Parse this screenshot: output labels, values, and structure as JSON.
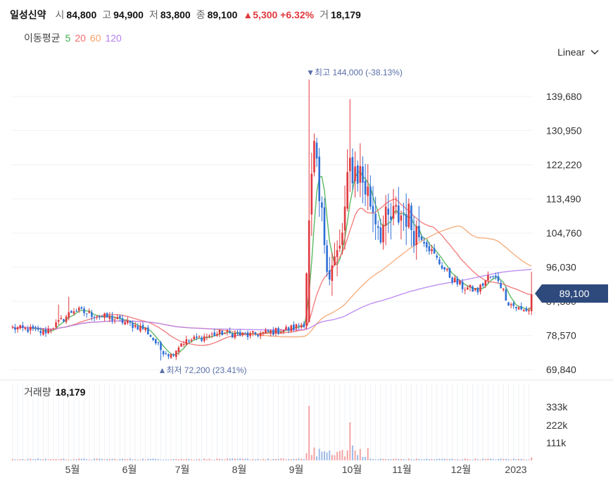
{
  "header": {
    "name": "일성신약",
    "open_label": "시",
    "open": "84,800",
    "high_label": "고",
    "high": "94,900",
    "low_label": "저",
    "low": "83,800",
    "close_label": "종",
    "close": "89,100",
    "change": "▲5,300 +6.32%",
    "volume_label": "거",
    "volume": "18,179"
  },
  "ma": {
    "label": "이동평균",
    "periods": [
      "5",
      "20",
      "60",
      "120"
    ],
    "colors": [
      "#3fae49",
      "#f06b6b",
      "#f3a26b",
      "#b57cf0"
    ]
  },
  "scale_mode": "Linear",
  "colors": {
    "up": "#e0383e",
    "down": "#2f6fd6",
    "current_tag": "#2e4a7d"
  },
  "current_price_tag": "89,100",
  "annotations": {
    "high": "▼최고 144,000 (-38.13%)",
    "low": "▲최저 72,200 (23.41%)"
  },
  "volume_panel": {
    "label": "거래량",
    "value": "18,179"
  },
  "chart_data": {
    "type": "candlestick",
    "price_axis": {
      "ticks": [
        139680,
        130950,
        122220,
        113490,
        104760,
        96030,
        87300,
        78570,
        69840
      ]
    },
    "volume_axis": {
      "ticks": [
        "333k",
        "222k",
        "111k"
      ]
    },
    "x_labels": [
      "5월",
      "6월",
      "7월",
      "8월",
      "9월",
      "10월",
      "11월",
      "12월",
      "2023"
    ],
    "anchors": [
      [
        0,
        80500
      ],
      [
        8,
        80000
      ],
      [
        12,
        79300
      ],
      [
        18,
        81800
      ],
      [
        24,
        85200
      ],
      [
        30,
        84100
      ],
      [
        40,
        82800
      ],
      [
        52,
        80200
      ],
      [
        58,
        75000
      ],
      [
        62,
        73500
      ],
      [
        66,
        76700
      ],
      [
        72,
        77800
      ],
      [
        82,
        79300
      ],
      [
        92,
        78600
      ],
      [
        104,
        79800
      ],
      [
        110,
        80600
      ],
      [
        114,
        81700
      ],
      [
        116,
        108000
      ],
      [
        118,
        125000
      ],
      [
        120,
        112000
      ],
      [
        124,
        95000
      ],
      [
        128,
        100000
      ],
      [
        130,
        110000
      ],
      [
        132,
        122000
      ],
      [
        136,
        120000
      ],
      [
        140,
        113000
      ],
      [
        144,
        106000
      ],
      [
        150,
        109000
      ],
      [
        154,
        110000
      ],
      [
        156,
        107000
      ],
      [
        160,
        104000
      ],
      [
        166,
        98000
      ],
      [
        172,
        93000
      ],
      [
        176,
        91000
      ],
      [
        182,
        90000
      ],
      [
        186,
        93500
      ],
      [
        190,
        93000
      ],
      [
        194,
        87000
      ],
      [
        199,
        85000
      ],
      [
        202,
        85200
      ],
      [
        203,
        89100
      ]
    ],
    "high_point": 144000,
    "low_point": 72200,
    "last": {
      "open": 84800,
      "high": 94900,
      "low": 83800,
      "close": 89100,
      "volume": 18179
    },
    "ma_periods": [
      5,
      20,
      60,
      120
    ]
  }
}
